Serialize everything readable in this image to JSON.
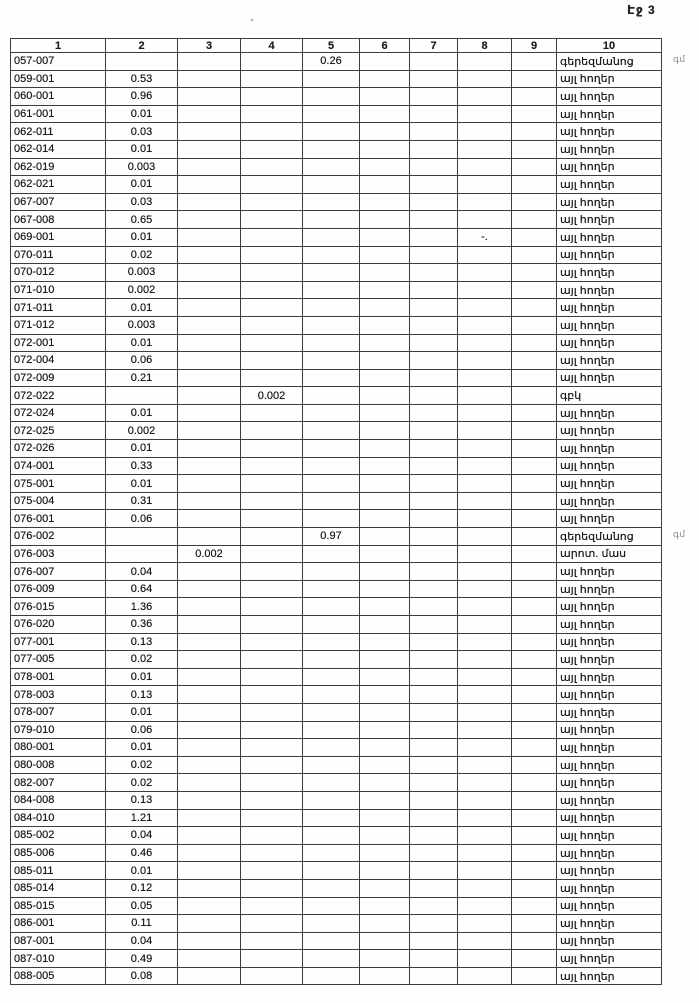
{
  "page": {
    "number_label": "Էջ 3"
  },
  "artifacts": {
    "top_dash": "-",
    "row_mark": "-."
  },
  "table": {
    "headers": [
      "1",
      "2",
      "3",
      "4",
      "5",
      "6",
      "7",
      "8",
      "9",
      "10"
    ],
    "rows": [
      {
        "code": "057-007",
        "c2": "",
        "c3": "",
        "c4": "",
        "c5": "0.26",
        "label": "գերեզմանոց",
        "note": "գմ"
      },
      {
        "code": "059-001",
        "c2": "0.53",
        "c3": "",
        "c4": "",
        "c5": "",
        "label": "այլ հողեր"
      },
      {
        "code": "060-001",
        "c2": "0.96",
        "c3": "",
        "c4": "",
        "c5": "",
        "label": "այլ հողեր"
      },
      {
        "code": "061-001",
        "c2": "0.01",
        "c3": "",
        "c4": "",
        "c5": "",
        "label": "այլ հողեր"
      },
      {
        "code": "062-011",
        "c2": "0.03",
        "c3": "",
        "c4": "",
        "c5": "",
        "label": "այլ հողեր"
      },
      {
        "code": "062-014",
        "c2": "0.01",
        "c3": "",
        "c4": "",
        "c5": "",
        "label": "այլ հողեր"
      },
      {
        "code": "062-019",
        "c2": "0.003",
        "c3": "",
        "c4": "",
        "c5": "",
        "label": "այլ հողեր"
      },
      {
        "code": "062-021",
        "c2": "0.01",
        "c3": "",
        "c4": "",
        "c5": "",
        "label": "այլ հողեր"
      },
      {
        "code": "067-007",
        "c2": "0.03",
        "c3": "",
        "c4": "",
        "c5": "",
        "label": "այլ հողեր"
      },
      {
        "code": "067-008",
        "c2": "0.65",
        "c3": "",
        "c4": "",
        "c5": "",
        "label": "այլ հողեր"
      },
      {
        "code": "069-001",
        "c2": "0.01",
        "c3": "",
        "c4": "",
        "c5": "",
        "label": "այլ հողեր",
        "mark8": "-."
      },
      {
        "code": "070-011",
        "c2": "0.02",
        "c3": "",
        "c4": "",
        "c5": "",
        "label": "այլ հողեր"
      },
      {
        "code": "070-012",
        "c2": "0.003",
        "c3": "",
        "c4": "",
        "c5": "",
        "label": "այլ հողեր"
      },
      {
        "code": "071-010",
        "c2": "0.002",
        "c3": "",
        "c4": "",
        "c5": "",
        "label": "այլ հողեր"
      },
      {
        "code": "071-011",
        "c2": "0.01",
        "c3": "",
        "c4": "",
        "c5": "",
        "label": "այլ հողեր"
      },
      {
        "code": "071-012",
        "c2": "0.003",
        "c3": "",
        "c4": "",
        "c5": "",
        "label": "այլ հողեր"
      },
      {
        "code": "072-001",
        "c2": "0.01",
        "c3": "",
        "c4": "",
        "c5": "",
        "label": "այլ հողեր"
      },
      {
        "code": "072-004",
        "c2": "0.06",
        "c3": "",
        "c4": "",
        "c5": "",
        "label": "այլ հողեր"
      },
      {
        "code": "072-009",
        "c2": "0.21",
        "c3": "",
        "c4": "",
        "c5": "",
        "label": "այլ հողեր"
      },
      {
        "code": "072-022",
        "c2": "",
        "c3": "",
        "c4": "0.002",
        "c5": "",
        "label": "գբկ"
      },
      {
        "code": "072-024",
        "c2": "0.01",
        "c3": "",
        "c4": "",
        "c5": "",
        "label": "այլ հողեր"
      },
      {
        "code": "072-025",
        "c2": "0.002",
        "c3": "",
        "c4": "",
        "c5": "",
        "label": "այլ հողեր"
      },
      {
        "code": "072-026",
        "c2": "0.01",
        "c3": "",
        "c4": "",
        "c5": "",
        "label": "այլ հողեր"
      },
      {
        "code": "074-001",
        "c2": "0.33",
        "c3": "",
        "c4": "",
        "c5": "",
        "label": "այլ հողեր"
      },
      {
        "code": "075-001",
        "c2": "0.01",
        "c3": "",
        "c4": "",
        "c5": "",
        "label": "այլ հողեր"
      },
      {
        "code": "075-004",
        "c2": "0.31",
        "c3": "",
        "c4": "",
        "c5": "",
        "label": "այլ հողեր"
      },
      {
        "code": "076-001",
        "c2": "0.06",
        "c3": "",
        "c4": "",
        "c5": "",
        "label": "այլ հողեր"
      },
      {
        "code": "076-002",
        "c2": "",
        "c3": "",
        "c4": "",
        "c5": "0.97",
        "label": "գերեզմանոց",
        "note": "գմ"
      },
      {
        "code": "076-003",
        "c2": "",
        "c3": "0.002",
        "c4": "",
        "c5": "",
        "label": "արոտ. մաս"
      },
      {
        "code": "076-007",
        "c2": "0.04",
        "c3": "",
        "c4": "",
        "c5": "",
        "label": "այլ հողեր"
      },
      {
        "code": "076-009",
        "c2": "0.64",
        "c3": "",
        "c4": "",
        "c5": "",
        "label": "այլ հողեր"
      },
      {
        "code": "076-015",
        "c2": "1.36",
        "c3": "",
        "c4": "",
        "c5": "",
        "label": "այլ հողեր"
      },
      {
        "code": "076-020",
        "c2": "0.36",
        "c3": "",
        "c4": "",
        "c5": "",
        "label": "այլ հողեր"
      },
      {
        "code": "077-001",
        "c2": "0.13",
        "c3": "",
        "c4": "",
        "c5": "",
        "label": "այլ հողեր"
      },
      {
        "code": "077-005",
        "c2": "0.02",
        "c3": "",
        "c4": "",
        "c5": "",
        "label": "այլ հողեր"
      },
      {
        "code": "078-001",
        "c2": "0.01",
        "c3": "",
        "c4": "",
        "c5": "",
        "label": "այլ հողեր"
      },
      {
        "code": "078-003",
        "c2": "0.13",
        "c3": "",
        "c4": "",
        "c5": "",
        "label": "այլ հողեր"
      },
      {
        "code": "078-007",
        "c2": "0.01",
        "c3": "",
        "c4": "",
        "c5": "",
        "label": "այլ հողեր"
      },
      {
        "code": "079-010",
        "c2": "0.06",
        "c3": "",
        "c4": "",
        "c5": "",
        "label": "այլ հողեր"
      },
      {
        "code": "080-001",
        "c2": "0.01",
        "c3": "",
        "c4": "",
        "c5": "",
        "label": "այլ հողեր"
      },
      {
        "code": "080-008",
        "c2": "0.02",
        "c3": "",
        "c4": "",
        "c5": "",
        "label": "այլ հողեր"
      },
      {
        "code": "082-007",
        "c2": "0.02",
        "c3": "",
        "c4": "",
        "c5": "",
        "label": "այլ հողեր"
      },
      {
        "code": "084-008",
        "c2": "0.13",
        "c3": "",
        "c4": "",
        "c5": "",
        "label": "այլ հողեր"
      },
      {
        "code": "084-010",
        "c2": "1.21",
        "c3": "",
        "c4": "",
        "c5": "",
        "label": "այլ հողեր"
      },
      {
        "code": "085-002",
        "c2": "0.04",
        "c3": "",
        "c4": "",
        "c5": "",
        "label": "այլ հողեր"
      },
      {
        "code": "085-006",
        "c2": "0.46",
        "c3": "",
        "c4": "",
        "c5": "",
        "label": "այլ հողեր"
      },
      {
        "code": "085-011",
        "c2": "0.01",
        "c3": "",
        "c4": "",
        "c5": "",
        "label": "այլ հողեր"
      },
      {
        "code": "085-014",
        "c2": "0.12",
        "c3": "",
        "c4": "",
        "c5": "",
        "label": "այլ հողեր"
      },
      {
        "code": "085-015",
        "c2": "0.05",
        "c3": "",
        "c4": "",
        "c5": "",
        "label": "այլ հողեր"
      },
      {
        "code": "086-001",
        "c2": "0.11",
        "c3": "",
        "c4": "",
        "c5": "",
        "label": "այլ հողեր"
      },
      {
        "code": "087-001",
        "c2": "0.04",
        "c3": "",
        "c4": "",
        "c5": "",
        "label": "այլ հողեր"
      },
      {
        "code": "087-010",
        "c2": "0.49",
        "c3": "",
        "c4": "",
        "c5": "",
        "label": "այլ հողեր"
      },
      {
        "code": "088-005",
        "c2": "0.08",
        "c3": "",
        "c4": "",
        "c5": "",
        "label": "այլ հողեր"
      }
    ]
  }
}
